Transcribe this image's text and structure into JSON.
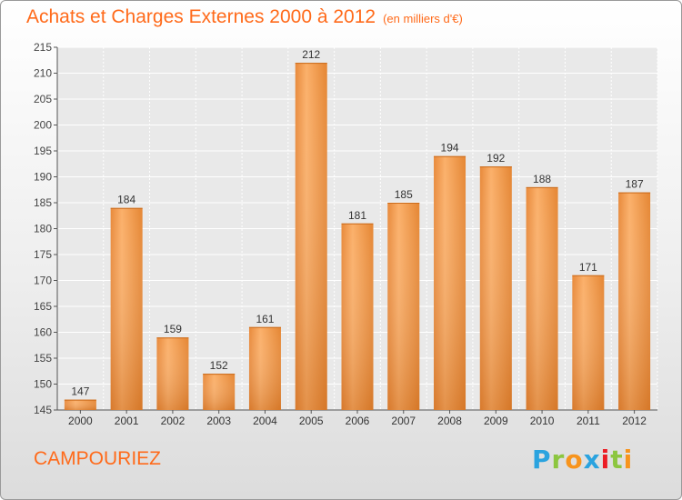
{
  "header": {
    "title": "Achats et Charges Externes 2000 à 2012",
    "unit": "(en milliers d'€)"
  },
  "footer": {
    "city": "CAMPOURIEZ",
    "logo_letters": [
      "P",
      "r",
      "o",
      "x",
      "i",
      "t",
      "i"
    ]
  },
  "colors": {
    "title": "#ff6a1a",
    "bar_light": "#f8a55a",
    "bar_dark": "#d8761f"
  },
  "chart_data": {
    "type": "bar",
    "categories": [
      "2000",
      "2001",
      "2002",
      "2003",
      "2004",
      "2005",
      "2006",
      "2007",
      "2008",
      "2009",
      "2010",
      "2011",
      "2012"
    ],
    "values": [
      147,
      184,
      159,
      152,
      161,
      212,
      181,
      185,
      194,
      192,
      188,
      171,
      187
    ],
    "ylim": [
      145,
      215
    ],
    "yticks": [
      145,
      150,
      155,
      160,
      165,
      170,
      175,
      180,
      185,
      190,
      195,
      200,
      205,
      210,
      215
    ],
    "grid": true,
    "data_labels": true,
    "legend": "none"
  }
}
